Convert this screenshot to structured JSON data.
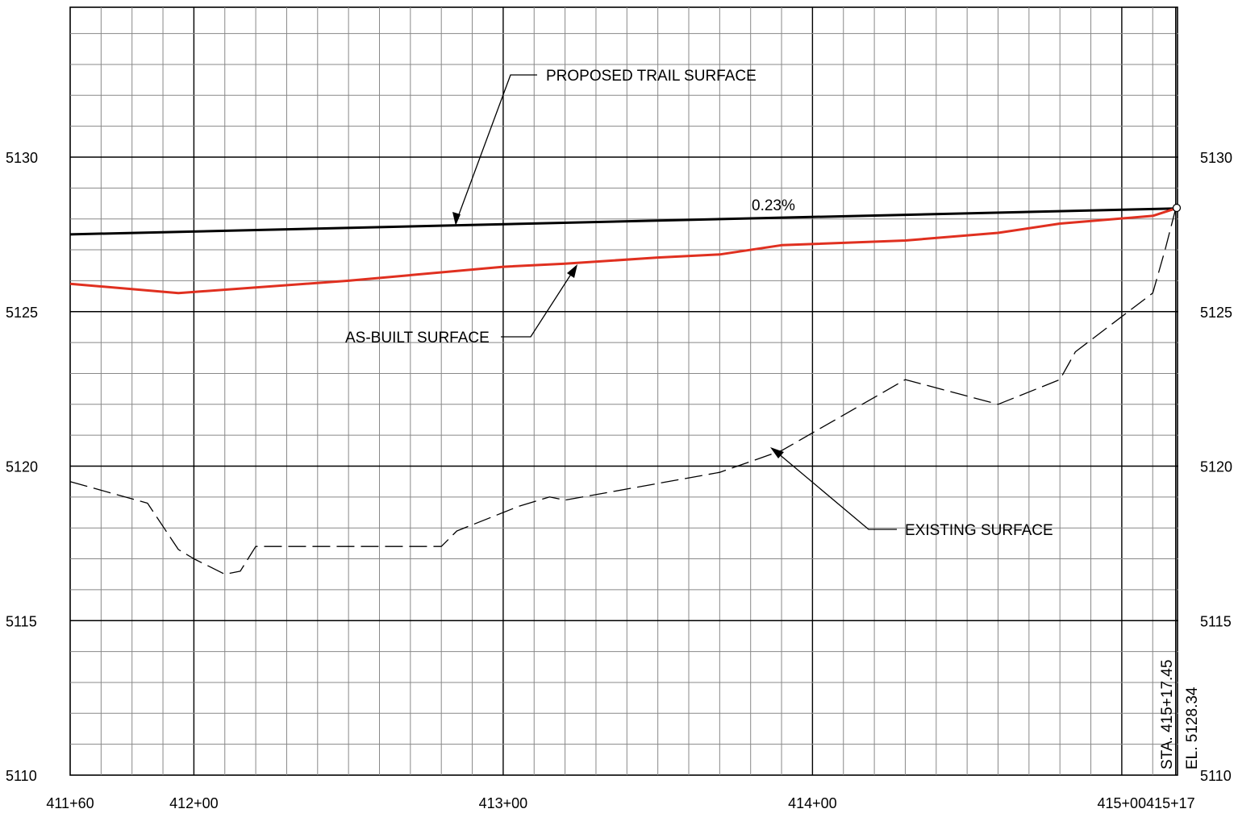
{
  "chart_data": {
    "type": "line",
    "title": "",
    "xlabel": "",
    "ylabel": "",
    "xlim": [
      160,
      517
    ],
    "ylim": [
      5110,
      5134.9
    ],
    "x_ticks": [
      {
        "value": 160,
        "label": "411+60"
      },
      {
        "value": 200,
        "label": "412+00"
      },
      {
        "value": 300,
        "label": "413+00"
      },
      {
        "value": 400,
        "label": "414+00"
      },
      {
        "value": 500,
        "label": "415+00"
      },
      {
        "value": 517,
        "label": "415+17"
      }
    ],
    "y_ticks": [
      {
        "value": 5110,
        "label": "5110"
      },
      {
        "value": 5115,
        "label": "5115"
      },
      {
        "value": 5120,
        "label": "5120"
      },
      {
        "value": 5125,
        "label": "5125"
      },
      {
        "value": 5130,
        "label": "5130"
      }
    ],
    "grid": true,
    "series": [
      {
        "name": "PROPOSED TRAIL SURFACE",
        "color": "#000000",
        "style": "solid",
        "x": [
          160,
          517.45
        ],
        "y": [
          5127.5,
          5128.34
        ]
      },
      {
        "name": "AS-BUILT SURFACE",
        "color": "#e03020",
        "style": "solid",
        "x": [
          160,
          195,
          250,
          300,
          320,
          350,
          370,
          390,
          430,
          460,
          480,
          510,
          517.45
        ],
        "y": [
          5125.9,
          5125.6,
          5126.0,
          5126.45,
          5126.55,
          5126.75,
          5126.85,
          5127.15,
          5127.3,
          5127.55,
          5127.85,
          5128.1,
          5128.34
        ]
      },
      {
        "name": "EXISTING SURFACE",
        "color": "#000000",
        "style": "dashed",
        "x": [
          160,
          185,
          195,
          200,
          210,
          215,
          220,
          250,
          280,
          285,
          305,
          315,
          320,
          370,
          390,
          430,
          460,
          480,
          485,
          510,
          514,
          517.45
        ],
        "y": [
          5119.5,
          5118.8,
          5117.3,
          5117.0,
          5116.5,
          5116.6,
          5117.4,
          5117.4,
          5117.4,
          5117.9,
          5118.7,
          5119.0,
          5118.9,
          5119.8,
          5120.5,
          5122.8,
          5122.0,
          5122.8,
          5123.7,
          5125.6,
          5127.0,
          5128.34
        ]
      }
    ]
  },
  "annotations": {
    "proposed_label": "PROPOSED TRAIL SURFACE",
    "asbuilt_label": "AS-BUILT SURFACE",
    "existing_label": "EXISTING SURFACE",
    "grade_label": "0.23%",
    "station_label": "STA. 415+17.45",
    "elevation_label": "EL. 5128.34"
  }
}
